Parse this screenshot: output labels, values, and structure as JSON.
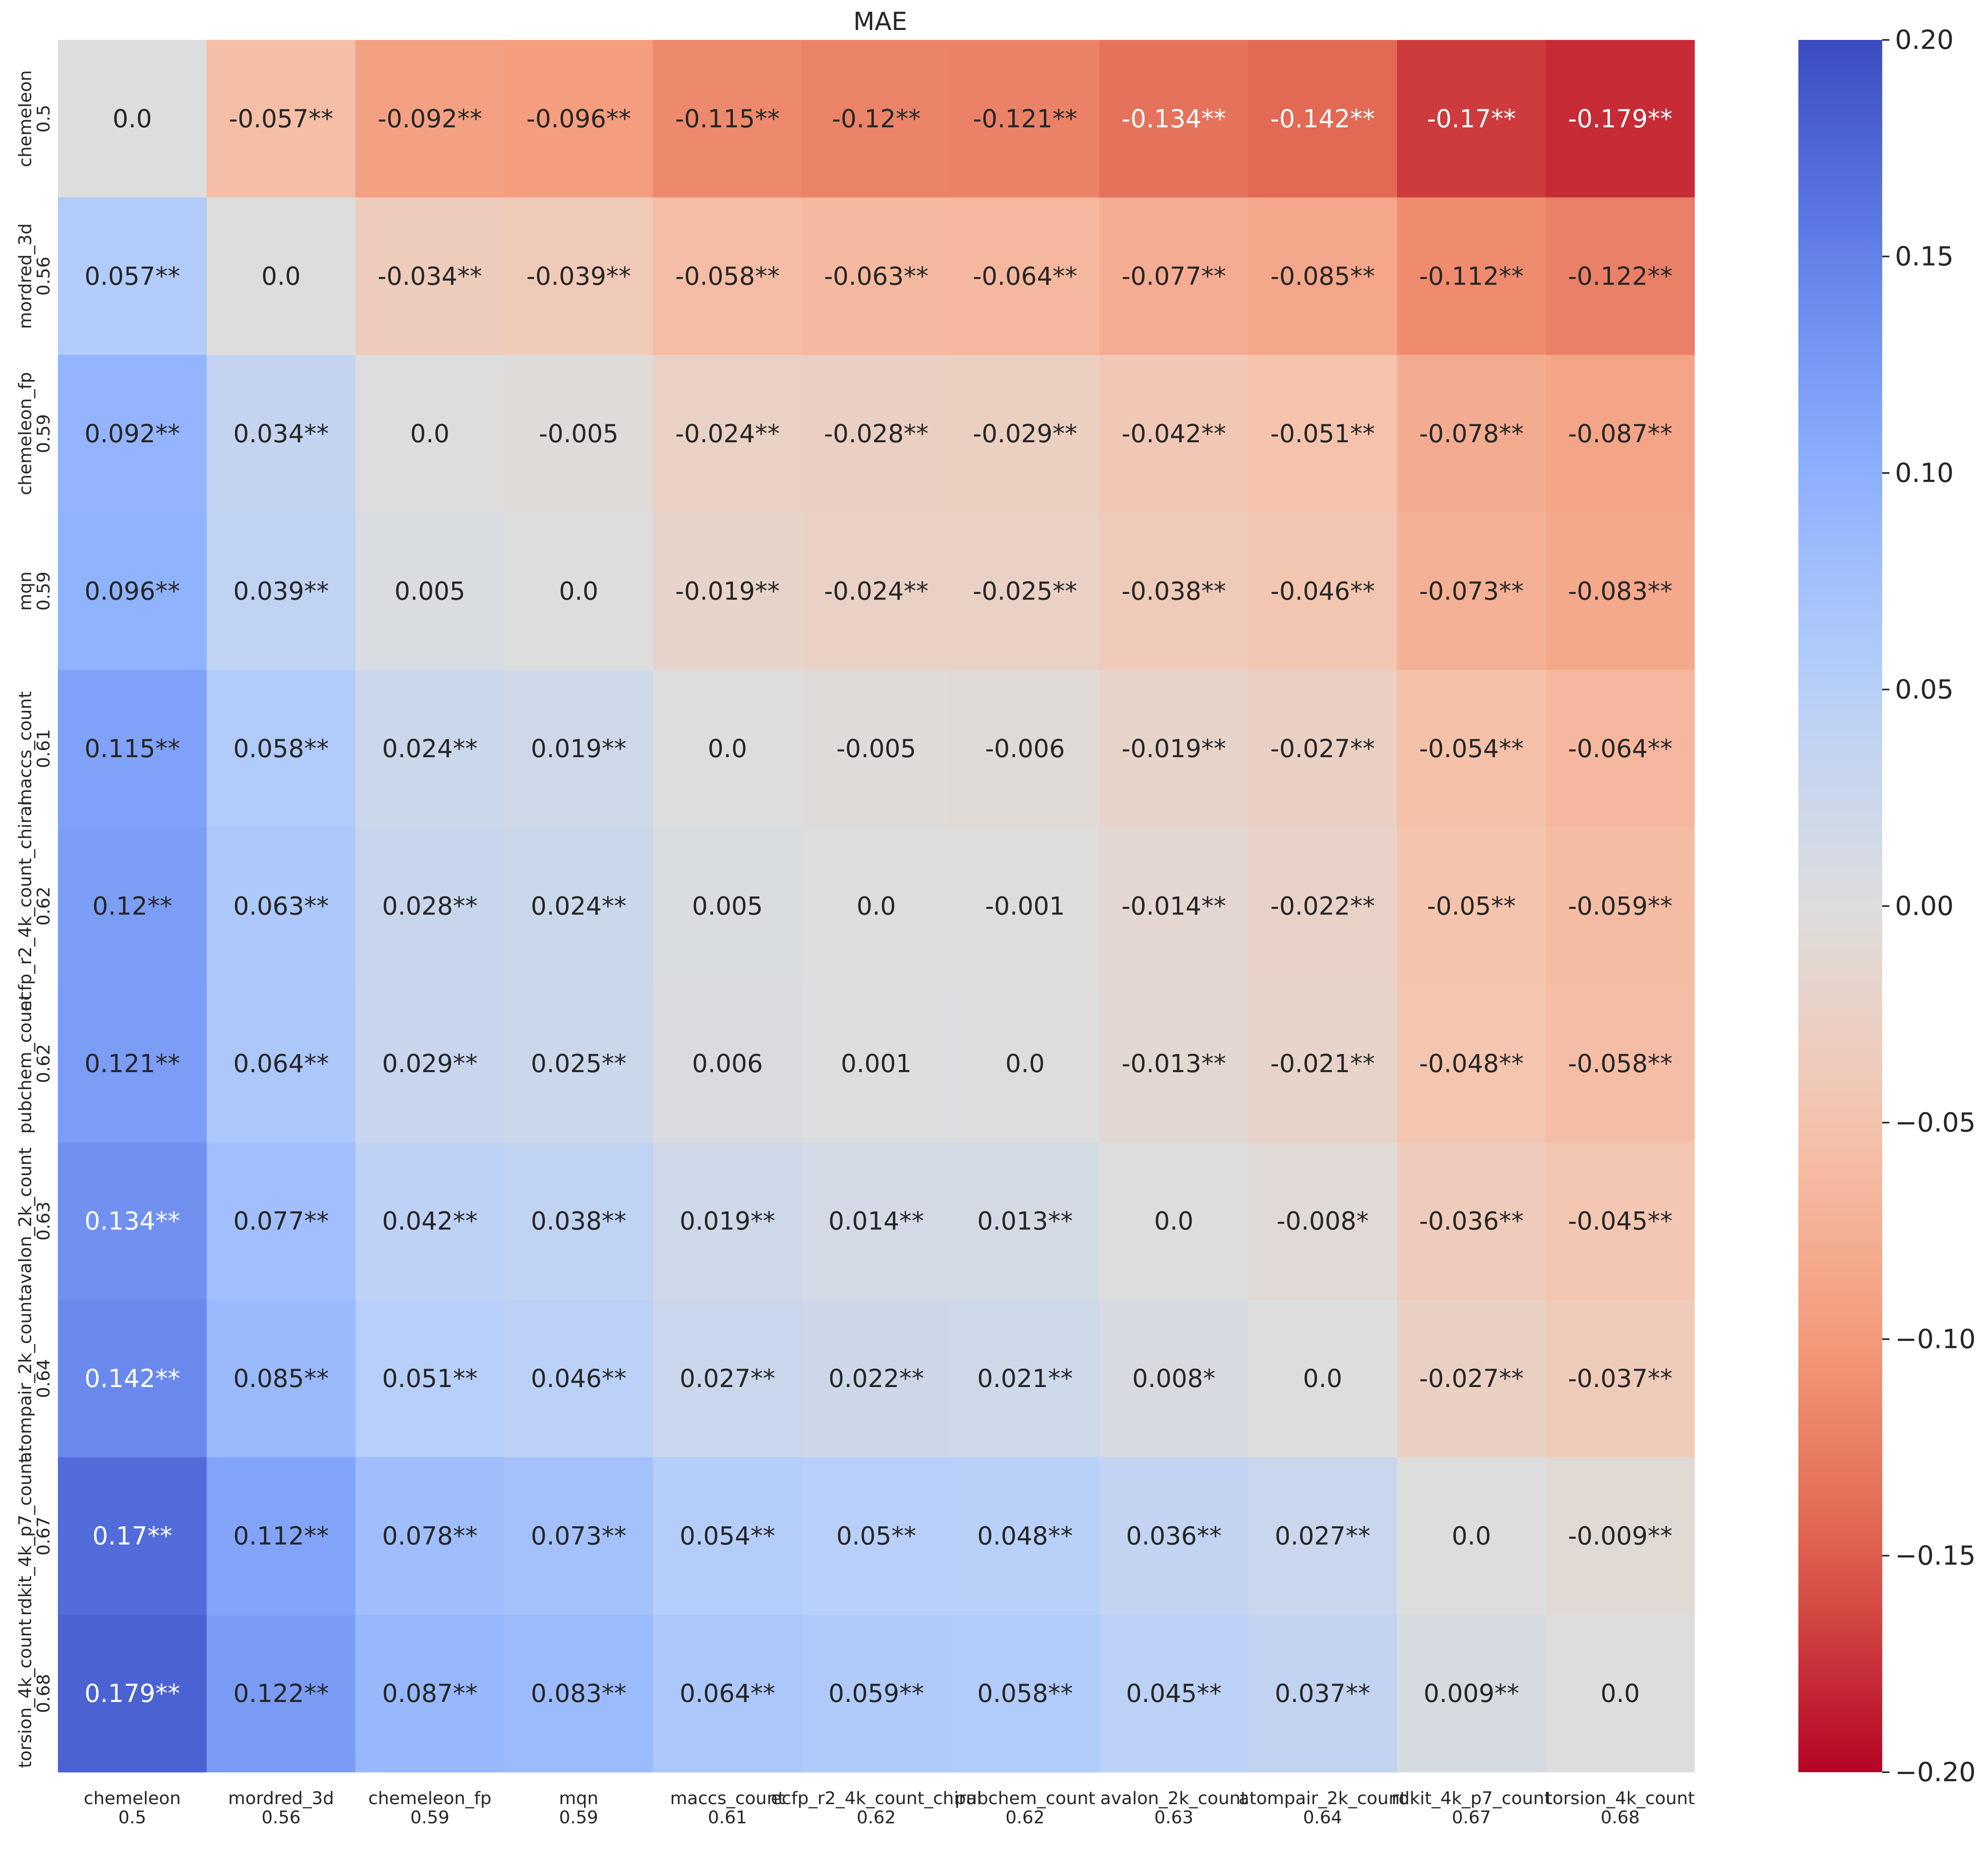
{
  "chart_data": {
    "type": "heatmap",
    "title": "MAE",
    "row_labels": [
      {
        "name": "chemeleon",
        "score": "0.5"
      },
      {
        "name": "mordred_3d",
        "score": "0.56"
      },
      {
        "name": "chemeleon_fp",
        "score": "0.59"
      },
      {
        "name": "mqn",
        "score": "0.59"
      },
      {
        "name": "maccs_count",
        "score": "0.61"
      },
      {
        "name": "ecfp_r2_4k_count_chiral",
        "score": "0.62"
      },
      {
        "name": "pubchem_count",
        "score": "0.62"
      },
      {
        "name": "avalon_2k_count",
        "score": "0.63"
      },
      {
        "name": "atompair_2k_count",
        "score": "0.64"
      },
      {
        "name": "rdkit_4k_p7_count",
        "score": "0.67"
      },
      {
        "name": "torsion_4k_count",
        "score": "0.68"
      }
    ],
    "col_labels": [
      {
        "name": "chemeleon",
        "score": "0.5"
      },
      {
        "name": "mordred_3d",
        "score": "0.56"
      },
      {
        "name": "chemeleon_fp",
        "score": "0.59"
      },
      {
        "name": "mqn",
        "score": "0.59"
      },
      {
        "name": "maccs_count",
        "score": "0.61"
      },
      {
        "name": "ecfp_r2_4k_count_chiral",
        "score": "0.62"
      },
      {
        "name": "pubchem_count",
        "score": "0.62"
      },
      {
        "name": "avalon_2k_count",
        "score": "0.63"
      },
      {
        "name": "atompair_2k_count",
        "score": "0.64"
      },
      {
        "name": "rdkit_4k_p7_count",
        "score": "0.67"
      },
      {
        "name": "torsion_4k_count",
        "score": "0.68"
      }
    ],
    "values": [
      [
        0.0,
        -0.057,
        -0.092,
        -0.096,
        -0.115,
        -0.12,
        -0.121,
        -0.134,
        -0.142,
        -0.17,
        -0.179
      ],
      [
        0.057,
        0.0,
        -0.034,
        -0.039,
        -0.058,
        -0.063,
        -0.064,
        -0.077,
        -0.085,
        -0.112,
        -0.122
      ],
      [
        0.092,
        0.034,
        0.0,
        -0.005,
        -0.024,
        -0.028,
        -0.029,
        -0.042,
        -0.051,
        -0.078,
        -0.087
      ],
      [
        0.096,
        0.039,
        0.005,
        0.0,
        -0.019,
        -0.024,
        -0.025,
        -0.038,
        -0.046,
        -0.073,
        -0.083
      ],
      [
        0.115,
        0.058,
        0.024,
        0.019,
        0.0,
        -0.005,
        -0.006,
        -0.019,
        -0.027,
        -0.054,
        -0.064
      ],
      [
        0.12,
        0.063,
        0.028,
        0.024,
        0.005,
        0.0,
        -0.001,
        -0.014,
        -0.022,
        -0.05,
        -0.059
      ],
      [
        0.121,
        0.064,
        0.029,
        0.025,
        0.006,
        0.001,
        0.0,
        -0.013,
        -0.021,
        -0.048,
        -0.058
      ],
      [
        0.134,
        0.077,
        0.042,
        0.038,
        0.019,
        0.014,
        0.013,
        0.0,
        -0.008,
        -0.036,
        -0.045
      ],
      [
        0.142,
        0.085,
        0.051,
        0.046,
        0.027,
        0.022,
        0.021,
        0.008,
        0.0,
        -0.027,
        -0.037
      ],
      [
        0.17,
        0.112,
        0.078,
        0.073,
        0.054,
        0.05,
        0.048,
        0.036,
        0.027,
        0.0,
        -0.009
      ],
      [
        0.179,
        0.122,
        0.087,
        0.083,
        0.064,
        0.059,
        0.058,
        0.045,
        0.037,
        0.009,
        0.0
      ]
    ],
    "cell_labels": [
      [
        "0.0",
        "-0.057**",
        "-0.092**",
        "-0.096**",
        "-0.115**",
        "-0.12**",
        "-0.121**",
        "-0.134**",
        "-0.142**",
        "-0.17**",
        "-0.179**"
      ],
      [
        "0.057**",
        "0.0",
        "-0.034**",
        "-0.039**",
        "-0.058**",
        "-0.063**",
        "-0.064**",
        "-0.077**",
        "-0.085**",
        "-0.112**",
        "-0.122**"
      ],
      [
        "0.092**",
        "0.034**",
        "0.0",
        "-0.005",
        "-0.024**",
        "-0.028**",
        "-0.029**",
        "-0.042**",
        "-0.051**",
        "-0.078**",
        "-0.087**"
      ],
      [
        "0.096**",
        "0.039**",
        "0.005",
        "0.0",
        "-0.019**",
        "-0.024**",
        "-0.025**",
        "-0.038**",
        "-0.046**",
        "-0.073**",
        "-0.083**"
      ],
      [
        "0.115**",
        "0.058**",
        "0.024**",
        "0.019**",
        "0.0",
        "-0.005",
        "-0.006",
        "-0.019**",
        "-0.027**",
        "-0.054**",
        "-0.064**"
      ],
      [
        "0.12**",
        "0.063**",
        "0.028**",
        "0.024**",
        "0.005",
        "0.0",
        "-0.001",
        "-0.014**",
        "-0.022**",
        "-0.05**",
        "-0.059**"
      ],
      [
        "0.121**",
        "0.064**",
        "0.029**",
        "0.025**",
        "0.006",
        "0.001",
        "0.0",
        "-0.013**",
        "-0.021**",
        "-0.048**",
        "-0.058**"
      ],
      [
        "0.134**",
        "0.077**",
        "0.042**",
        "0.038**",
        "0.019**",
        "0.014**",
        "0.013**",
        "0.0",
        "-0.008*",
        "-0.036**",
        "-0.045**"
      ],
      [
        "0.142**",
        "0.085**",
        "0.051**",
        "0.046**",
        "0.027**",
        "0.022**",
        "0.021**",
        "0.008*",
        "0.0",
        "-0.027**",
        "-0.037**"
      ],
      [
        "0.17**",
        "0.112**",
        "0.078**",
        "0.073**",
        "0.054**",
        "0.05**",
        "0.048**",
        "0.036**",
        "0.027**",
        "0.0",
        "-0.009**"
      ],
      [
        "0.179**",
        "0.122**",
        "0.087**",
        "0.083**",
        "0.064**",
        "0.059**",
        "0.058**",
        "0.045**",
        "0.037**",
        "0.009**",
        "0.0"
      ]
    ],
    "colormap": "coolwarm_r",
    "vmin": -0.2,
    "vmax": 0.2,
    "colorbar_ticks": [
      "0.20",
      "0.15",
      "0.10",
      "0.05",
      "0.00",
      "−0.05",
      "−0.10",
      "−0.15",
      "−0.20"
    ],
    "colorbar_tick_values": [
      0.2,
      0.15,
      0.1,
      0.05,
      0.0,
      -0.05,
      -0.1,
      -0.15,
      -0.2
    ]
  }
}
